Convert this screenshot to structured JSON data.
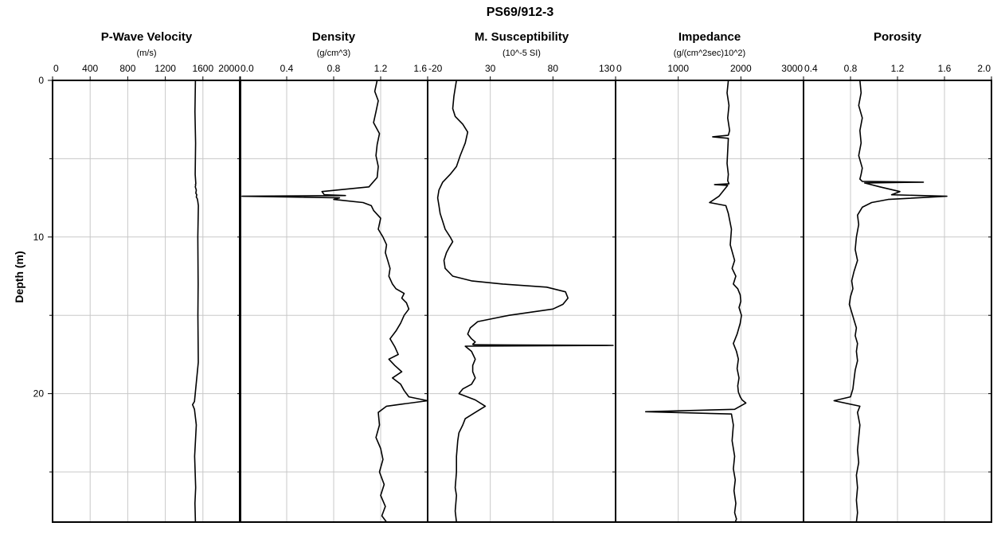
{
  "title": "PS69/912-3",
  "y_axis": {
    "label": "Depth (m)",
    "min": 0,
    "max": 28.2,
    "ticks": [
      0,
      10,
      20
    ],
    "tick_labels": [
      "0",
      "10",
      "20"
    ],
    "minor_ticks": [
      5,
      15,
      25
    ],
    "inverted": true
  },
  "chart_data": [
    {
      "type": "line",
      "title": "P-Wave Velocity",
      "xlabel": "(m/s)",
      "xlim": [
        0,
        2000
      ],
      "xticks": [
        0,
        400,
        800,
        1200,
        1600,
        2000
      ],
      "xtick_labels": [
        "0",
        "400",
        "800",
        "1200",
        "1600",
        "2000"
      ],
      "grid": "vertical",
      "series": [
        {
          "x": [
            1520,
            1515,
            1522,
            1518,
            1525,
            1520,
            1523,
            1519,
            1530,
            1525,
            1535,
            1530,
            1540,
            1545,
            1548,
            1552,
            1546,
            1549,
            1547,
            1551,
            1510,
            1490,
            1510,
            1530,
            1512,
            1523,
            1515,
            1520
          ],
          "y": [
            0,
            2,
            4,
            6,
            6.6,
            6.65,
            6.7,
            6.8,
            7.0,
            7.2,
            7.3,
            7.45,
            7.55,
            7.7,
            7.85,
            8.0,
            10,
            13,
            15,
            18,
            20.5,
            20.7,
            21,
            22,
            24,
            26,
            27,
            28.2
          ]
        }
      ]
    },
    {
      "type": "line",
      "title": "Density",
      "xlabel": "(g/cm^3)",
      "xlim": [
        0,
        1.6
      ],
      "xticks": [
        0.0,
        0.4,
        0.8,
        1.2,
        1.6
      ],
      "xtick_labels": [
        "0.0",
        "0.4",
        "0.8",
        "1.2",
        "1.6"
      ],
      "grid": "vertical",
      "series": [
        {
          "x": [
            1.17,
            1.15,
            1.18,
            1.16,
            1.14,
            1.19,
            1.17,
            1.16,
            1.18,
            1.17,
            1.1,
            0.7,
            0.72,
            0.9,
            0.02,
            0.85,
            0.8,
            1.05,
            1.12,
            1.14,
            1.2,
            1.18,
            1.22,
            1.25,
            1.24,
            1.26,
            1.28,
            1.27,
            1.3,
            1.33,
            1.4,
            1.38,
            1.42,
            1.44,
            1.4,
            1.37,
            1.33,
            1.28,
            1.32,
            1.35,
            1.27,
            1.32,
            1.38,
            1.3,
            1.37,
            1.4,
            1.44,
            1.6,
            1.25,
            1.18,
            1.19,
            1.16,
            1.2,
            1.22,
            1.19,
            1.23,
            1.2,
            1.24,
            1.21,
            1.25
          ],
          "y": [
            0,
            0.7,
            1.3,
            2.0,
            2.7,
            3.4,
            4.1,
            4.8,
            5.5,
            6.2,
            6.8,
            7.1,
            7.3,
            7.35,
            7.4,
            7.5,
            7.6,
            7.8,
            8.0,
            8.3,
            8.8,
            9.5,
            10.0,
            10.5,
            11.0,
            11.5,
            12.0,
            12.5,
            13.0,
            13.3,
            13.6,
            13.9,
            14.2,
            14.6,
            15.0,
            15.5,
            16.0,
            16.5,
            17.0,
            17.5,
            17.8,
            18.2,
            18.6,
            19.0,
            19.4,
            19.8,
            20.2,
            20.45,
            20.8,
            21.2,
            22.0,
            22.8,
            23.5,
            24.2,
            25.0,
            25.8,
            26.5,
            27.2,
            27.8,
            28.2
          ]
        }
      ]
    },
    {
      "type": "line",
      "title": "M. Susceptibility",
      "xlabel": "(10^-5 SI)",
      "xlim": [
        -20,
        130
      ],
      "xticks": [
        -20,
        30,
        80,
        130
      ],
      "xtick_labels": [
        "-20",
        "30",
        "80",
        "130"
      ],
      "grid": "vertical",
      "series": [
        {
          "x": [
            3,
            2,
            1,
            0,
            2,
            8,
            12,
            10,
            6,
            3,
            -2,
            -8,
            -11,
            -12,
            -11,
            -10,
            -8,
            -6,
            -2,
            0,
            -3,
            -5,
            -7,
            -6,
            0,
            15,
            40,
            75,
            90,
            92,
            88,
            80,
            45,
            20,
            14,
            12,
            15,
            18,
            16,
            17,
            128,
            10,
            15,
            18,
            16,
            16,
            18,
            15,
            8,
            5,
            18,
            26,
            18,
            10,
            8,
            5,
            4,
            3,
            3,
            2,
            3,
            2,
            3
          ],
          "y": [
            0,
            0.5,
            1.0,
            1.8,
            2.3,
            2.8,
            3.3,
            4.0,
            4.8,
            5.5,
            6.0,
            6.5,
            7.0,
            7.5,
            8.0,
            8.5,
            9.0,
            9.5,
            10.0,
            10.3,
            10.7,
            11.0,
            11.5,
            12.0,
            12.5,
            12.8,
            13.0,
            13.2,
            13.5,
            13.9,
            14.3,
            14.6,
            15.0,
            15.4,
            15.8,
            16.2,
            16.5,
            16.7,
            16.85,
            16.88,
            16.92,
            16.97,
            17.3,
            17.8,
            18.2,
            18.6,
            19.0,
            19.4,
            19.7,
            20.0,
            20.4,
            20.8,
            21.2,
            21.6,
            22.0,
            22.5,
            23.0,
            24.0,
            25.0,
            26.0,
            26.5,
            27.5,
            28.2
          ]
        }
      ]
    },
    {
      "type": "line",
      "title": "Impedance",
      "xlabel": "(g/(cm^2sec)10^2)",
      "xlim": [
        0,
        3000
      ],
      "xticks": [
        0,
        1000,
        2000,
        3000
      ],
      "xtick_labels": [
        "0",
        "1000",
        "2000",
        "3000"
      ],
      "grid": "vertical",
      "series": [
        {
          "x": [
            1800,
            1780,
            1810,
            1790,
            1820,
            1800,
            1550,
            1800,
            1790,
            1780,
            1800,
            1790,
            1800,
            1810,
            1580,
            1790,
            1650,
            1500,
            1760,
            1800,
            1850,
            1830,
            1900,
            1860,
            1920,
            1880,
            1950,
            1990,
            2000,
            1970,
            2010,
            1990,
            1940,
            1880,
            1930,
            1960,
            1940,
            1970,
            1950,
            1960,
            1990,
            2020,
            2080,
            1900,
            480,
            1850,
            1880,
            1860,
            1900,
            1880,
            1910,
            1890,
            1920,
            1900,
            1930,
            1910
          ],
          "y": [
            0,
            0.8,
            1.6,
            2.4,
            3.2,
            3.5,
            3.6,
            3.7,
            4.5,
            5.3,
            6.0,
            6.4,
            6.5,
            6.6,
            6.65,
            6.7,
            7.4,
            7.8,
            8.0,
            8.5,
            9.5,
            10.5,
            11.5,
            12.0,
            12.5,
            13.0,
            13.3,
            13.7,
            14.1,
            14.5,
            15.0,
            15.5,
            16.2,
            16.8,
            17.3,
            17.8,
            18.4,
            19.0,
            19.5,
            19.9,
            20.2,
            20.4,
            20.6,
            21.0,
            21.15,
            21.3,
            22.0,
            23.0,
            24.0,
            24.8,
            25.5,
            26.2,
            27.0,
            27.6,
            28.0,
            28.2
          ]
        }
      ]
    },
    {
      "type": "line",
      "title": "Porosity",
      "xlabel": "",
      "xlim": [
        0.4,
        2.0
      ],
      "xticks": [
        0.4,
        0.8,
        1.2,
        1.6,
        2.0
      ],
      "xtick_labels": [
        "0.4",
        "0.8",
        "1.2",
        "1.6",
        "2.0"
      ],
      "grid": "vertical",
      "series": [
        {
          "x": [
            0.88,
            0.89,
            0.87,
            0.9,
            0.88,
            0.89,
            0.87,
            0.9,
            0.89,
            0.88,
            0.9,
            1.42,
            0.92,
            1.05,
            1.22,
            1.15,
            1.62,
            1.12,
            0.98,
            0.9,
            0.86,
            0.87,
            0.85,
            0.84,
            0.86,
            0.83,
            0.81,
            0.82,
            0.8,
            0.79,
            0.81,
            0.83,
            0.85,
            0.84,
            0.86,
            0.85,
            0.86,
            0.84,
            0.83,
            0.82,
            0.8,
            0.66,
            0.88,
            0.86,
            0.88,
            0.87,
            0.86,
            0.87,
            0.85,
            0.86,
            0.85,
            0.86,
            0.85
          ],
          "y": [
            0,
            0.8,
            1.6,
            2.4,
            3.2,
            4.0,
            4.8,
            5.6,
            6.0,
            6.3,
            6.45,
            6.5,
            6.55,
            6.8,
            7.1,
            7.3,
            7.4,
            7.6,
            7.8,
            8.1,
            8.6,
            9.2,
            10.0,
            10.8,
            11.5,
            12.2,
            12.8,
            13.3,
            13.8,
            14.3,
            14.8,
            15.3,
            15.8,
            16.3,
            16.8,
            17.3,
            17.9,
            18.5,
            19.1,
            19.7,
            20.2,
            20.45,
            20.8,
            21.2,
            22.0,
            22.8,
            23.6,
            24.4,
            25.2,
            26.0,
            26.8,
            27.6,
            28.2
          ]
        }
      ]
    }
  ],
  "units_row": [
    "(m/s)",
    "(g/cm^3)",
    "(10^-5 SI)",
    "(g/(cm^2sec)10^2)"
  ]
}
